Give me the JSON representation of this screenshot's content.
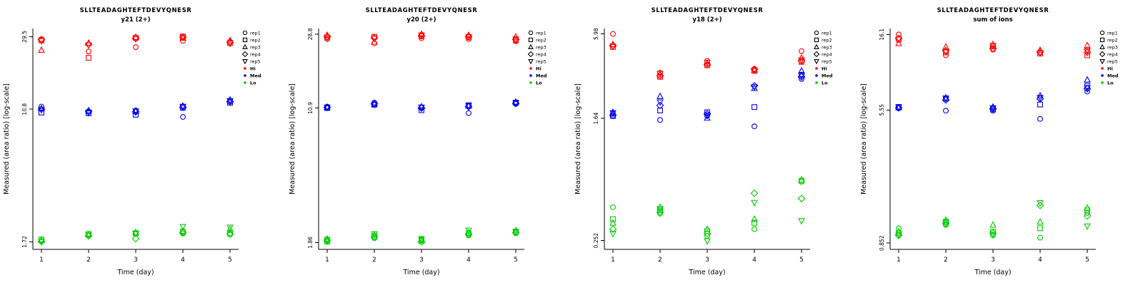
{
  "figure": {
    "background": "#ffffff",
    "axis_color": "#000000",
    "colors": {
      "Hi": "#ff0000",
      "Med": "#0000ee",
      "Lo": "#00cc00"
    },
    "markers": {
      "rep1": "circle",
      "rep2": "square",
      "rep3": "triangle-up",
      "rep4": "diamond",
      "rep5": "triangle-down"
    },
    "legend": {
      "reps": [
        "rep1",
        "rep2",
        "rep3",
        "rep4",
        "rep5"
      ],
      "groups": [
        "Hi",
        "Med",
        "Lo"
      ]
    }
  },
  "chart_data": [
    {
      "type": "scatter",
      "title": "SLLTEADAGHTEFTDEVYQNESR",
      "subtitle": "y21 (2+)",
      "xlabel": "Time (day)",
      "ylabel": "Measured (area ratio) [log-scale]",
      "yscale": "log",
      "x": [
        1,
        2,
        3,
        4,
        5
      ],
      "xtick_labels": [
        "1",
        "2",
        "3",
        "4",
        "5"
      ],
      "ytick_values": [
        1.72,
        10.8,
        29.5
      ],
      "ytick_labels": [
        "1.72",
        "10.8",
        "29.5"
      ],
      "ylim": [
        1.55,
        33
      ],
      "series": [
        {
          "group": "Hi",
          "rep": "rep1",
          "values": [
            28.5,
            24.0,
            25.5,
            27.8,
            27.5
          ]
        },
        {
          "group": "Hi",
          "rep": "rep2",
          "values": [
            28.0,
            22.0,
            29.0,
            29.5,
            27.0
          ]
        },
        {
          "group": "Hi",
          "rep": "rep3",
          "values": [
            24.5,
            27.0,
            29.3,
            29.0,
            28.0
          ]
        },
        {
          "group": "Hi",
          "rep": "rep4",
          "values": [
            28.2,
            26.5,
            28.8,
            29.3,
            27.2
          ]
        },
        {
          "group": "Hi",
          "rep": "rep5",
          "values": [
            27.8,
            26.2,
            28.5,
            29.1,
            26.8
          ]
        },
        {
          "group": "Med",
          "rep": "rep1",
          "values": [
            11.2,
            10.4,
            10.6,
            9.7,
            12.0
          ]
        },
        {
          "group": "Med",
          "rep": "rep2",
          "values": [
            10.3,
            10.2,
            10.0,
            11.0,
            11.8
          ]
        },
        {
          "group": "Med",
          "rep": "rep3",
          "values": [
            10.9,
            10.6,
            10.5,
            11.3,
            12.3
          ]
        },
        {
          "group": "Med",
          "rep": "rep4",
          "values": [
            10.8,
            10.5,
            10.4,
            11.1,
            12.0
          ]
        },
        {
          "group": "Med",
          "rep": "rep5",
          "values": [
            10.7,
            10.3,
            10.5,
            11.2,
            12.1
          ]
        },
        {
          "group": "Lo",
          "rep": "rep1",
          "values": [
            1.74,
            1.88,
            1.92,
            1.93,
            1.9
          ]
        },
        {
          "group": "Lo",
          "rep": "rep2",
          "values": [
            1.78,
            1.92,
            1.94,
            1.98,
            1.95
          ]
        },
        {
          "group": "Lo",
          "rep": "rep3",
          "values": [
            1.76,
            1.9,
            1.96,
            2.0,
            2.05
          ]
        },
        {
          "group": "Lo",
          "rep": "rep4",
          "values": [
            1.73,
            1.87,
            1.8,
            1.96,
            1.92
          ]
        },
        {
          "group": "Lo",
          "rep": "rep5",
          "values": [
            1.72,
            1.89,
            1.93,
            2.12,
            2.1
          ]
        }
      ]
    },
    {
      "type": "scatter",
      "title": "SLLTEADAGHTEFTDEVYQNESR",
      "subtitle": "y20 (2+)",
      "xlabel": "Time (day)",
      "ylabel": "Measured (area ratio) [log-scale]",
      "yscale": "log",
      "x": [
        1,
        2,
        3,
        4,
        5
      ],
      "xtick_labels": [
        "1",
        "2",
        "3",
        "4",
        "5"
      ],
      "ytick_values": [
        1.86,
        10.9,
        28.8
      ],
      "ytick_labels": [
        "1.86",
        "10.9",
        "28.8"
      ],
      "ylim": [
        1.7,
        31
      ],
      "series": [
        {
          "group": "Hi",
          "rep": "rep1",
          "values": [
            27.0,
            25.5,
            27.3,
            27.0,
            26.2
          ]
        },
        {
          "group": "Hi",
          "rep": "rep2",
          "values": [
            27.6,
            27.8,
            28.0,
            27.6,
            26.6
          ]
        },
        {
          "group": "Hi",
          "rep": "rep3",
          "values": [
            28.4,
            26.0,
            28.8,
            28.4,
            27.8
          ]
        },
        {
          "group": "Hi",
          "rep": "rep4",
          "values": [
            27.8,
            27.4,
            28.2,
            27.9,
            26.8
          ]
        },
        {
          "group": "Hi",
          "rep": "rep5",
          "values": [
            27.5,
            27.2,
            28.4,
            27.8,
            26.9
          ]
        },
        {
          "group": "Med",
          "rep": "rep1",
          "values": [
            11.1,
            11.7,
            11.0,
            10.2,
            11.5
          ]
        },
        {
          "group": "Med",
          "rep": "rep2",
          "values": [
            10.9,
            11.4,
            10.6,
            11.3,
            11.7
          ]
        },
        {
          "group": "Med",
          "rep": "rep3",
          "values": [
            11.0,
            11.5,
            11.1,
            11.2,
            11.8
          ]
        },
        {
          "group": "Med",
          "rep": "rep4",
          "values": [
            11.0,
            11.5,
            10.9,
            11.1,
            11.6
          ]
        },
        {
          "group": "Med",
          "rep": "rep5",
          "values": [
            11.0,
            11.4,
            11.0,
            11.2,
            11.6
          ]
        },
        {
          "group": "Lo",
          "rep": "rep1",
          "values": [
            1.9,
            1.97,
            1.92,
            2.04,
            2.1
          ]
        },
        {
          "group": "Lo",
          "rep": "rep2",
          "values": [
            1.88,
            2.02,
            1.95,
            2.1,
            2.14
          ]
        },
        {
          "group": "Lo",
          "rep": "rep3",
          "values": [
            1.95,
            2.05,
            1.9,
            2.12,
            2.18
          ]
        },
        {
          "group": "Lo",
          "rep": "rep4",
          "values": [
            1.92,
            2.0,
            1.88,
            2.08,
            2.12
          ]
        },
        {
          "group": "Lo",
          "rep": "rep5",
          "values": [
            1.93,
            2.08,
            1.93,
            2.18,
            2.15
          ]
        }
      ]
    },
    {
      "type": "scatter",
      "title": "SLLTEADAGHTEFTDEVYQNESR",
      "subtitle": "y18 (2+)",
      "xlabel": "Time (day)",
      "ylabel": "Measured (area ratio) [log-scale]",
      "yscale": "log",
      "x": [
        1,
        2,
        3,
        4,
        5
      ],
      "xtick_labels": [
        "1",
        "2",
        "3",
        "4",
        "5"
      ],
      "ytick_values": [
        0.252,
        1.64,
        5.98
      ],
      "ytick_labels": [
        "0.252",
        "1.64",
        "5.98"
      ],
      "ylim": [
        0.22,
        6.5
      ],
      "series": [
        {
          "group": "Hi",
          "rep": "rep1",
          "values": [
            5.98,
            3.3,
            3.95,
            3.5,
            4.6
          ]
        },
        {
          "group": "Hi",
          "rep": "rep2",
          "values": [
            4.9,
            3.1,
            3.7,
            3.4,
            3.9
          ]
        },
        {
          "group": "Hi",
          "rep": "rep3",
          "values": [
            5.1,
            3.2,
            3.8,
            3.45,
            4.15
          ]
        },
        {
          "group": "Hi",
          "rep": "rep4",
          "values": [
            5.0,
            3.15,
            3.75,
            3.48,
            3.95
          ]
        },
        {
          "group": "Hi",
          "rep": "rep5",
          "values": [
            4.95,
            3.25,
            3.85,
            3.42,
            4.0
          ]
        },
        {
          "group": "Med",
          "rep": "rep1",
          "values": [
            1.76,
            1.6,
            1.7,
            1.45,
            3.0
          ]
        },
        {
          "group": "Med",
          "rep": "rep2",
          "values": [
            1.7,
            1.85,
            1.8,
            1.95,
            3.2
          ]
        },
        {
          "group": "Med",
          "rep": "rep3",
          "values": [
            1.8,
            2.3,
            1.65,
            2.6,
            3.4
          ]
        },
        {
          "group": "Med",
          "rep": "rep4",
          "values": [
            1.72,
            2.0,
            1.75,
            2.7,
            3.1
          ]
        },
        {
          "group": "Med",
          "rep": "rep5",
          "values": [
            1.78,
            2.1,
            1.72,
            2.65,
            3.15
          ]
        },
        {
          "group": "Lo",
          "rep": "rep1",
          "values": [
            0.42,
            0.38,
            0.27,
            0.3,
            0.62
          ]
        },
        {
          "group": "Lo",
          "rep": "rep2",
          "values": [
            0.35,
            0.4,
            0.29,
            0.33,
            0.63
          ]
        },
        {
          "group": "Lo",
          "rep": "rep3",
          "values": [
            0.33,
            0.42,
            0.3,
            0.35,
            0.64
          ]
        },
        {
          "group": "Lo",
          "rep": "rep4",
          "values": [
            0.3,
            0.39,
            0.28,
            0.52,
            0.48
          ]
        },
        {
          "group": "Lo",
          "rep": "rep5",
          "values": [
            0.28,
            0.41,
            0.25,
            0.45,
            0.34
          ]
        }
      ]
    },
    {
      "type": "scatter",
      "title": "SLLTEADAGHTEFTDEVYQNESR",
      "subtitle": "sum of ions",
      "xlabel": "Time (day)",
      "ylabel": "Measured (area ratio) [log-scale]",
      "yscale": "log",
      "x": [
        1,
        2,
        3,
        4,
        5
      ],
      "xtick_labels": [
        "1",
        "2",
        "3",
        "4",
        "5"
      ],
      "ytick_values": [
        0.852,
        5.55,
        16.1
      ],
      "ytick_labels": [
        "0.852",
        "5.55",
        "16.1"
      ],
      "ylim": [
        0.78,
        17.5
      ],
      "series": [
        {
          "group": "Hi",
          "rep": "rep1",
          "values": [
            16.1,
            12.0,
            13.0,
            12.5,
            13.0
          ]
        },
        {
          "group": "Hi",
          "rep": "rep2",
          "values": [
            15.0,
            12.5,
            13.6,
            12.3,
            12.0
          ]
        },
        {
          "group": "Hi",
          "rep": "rep3",
          "values": [
            14.2,
            13.5,
            14.0,
            12.9,
            13.8
          ]
        },
        {
          "group": "Hi",
          "rep": "rep4",
          "values": [
            15.2,
            12.8,
            13.2,
            12.6,
            12.5
          ]
        },
        {
          "group": "Hi",
          "rep": "rep5",
          "values": [
            15.0,
            12.6,
            13.7,
            12.4,
            12.7
          ]
        },
        {
          "group": "Med",
          "rep": "rep1",
          "values": [
            5.7,
            5.5,
            5.5,
            4.9,
            7.2
          ]
        },
        {
          "group": "Med",
          "rep": "rep2",
          "values": [
            5.8,
            6.5,
            5.6,
            6.0,
            7.8
          ]
        },
        {
          "group": "Med",
          "rep": "rep3",
          "values": [
            5.75,
            6.6,
            5.8,
            6.8,
            8.5
          ]
        },
        {
          "group": "Med",
          "rep": "rep4",
          "values": [
            5.72,
            6.4,
            5.65,
            6.5,
            7.5
          ]
        },
        {
          "group": "Med",
          "rep": "rep5",
          "values": [
            5.78,
            6.55,
            5.7,
            6.6,
            7.6
          ]
        },
        {
          "group": "Lo",
          "rep": "rep1",
          "values": [
            1.05,
            1.1,
            0.95,
            0.92,
            1.3
          ]
        },
        {
          "group": "Lo",
          "rep": "rep2",
          "values": [
            0.98,
            1.15,
            1.0,
            1.05,
            1.35
          ]
        },
        {
          "group": "Lo",
          "rep": "rep3",
          "values": [
            1.0,
            1.18,
            1.1,
            1.15,
            1.4
          ]
        },
        {
          "group": "Lo",
          "rep": "rep4",
          "values": [
            0.95,
            1.12,
            0.98,
            1.45,
            1.25
          ]
        },
        {
          "group": "Lo",
          "rep": "rep5",
          "values": [
            0.96,
            1.14,
            0.96,
            1.5,
            1.08
          ]
        }
      ]
    }
  ]
}
